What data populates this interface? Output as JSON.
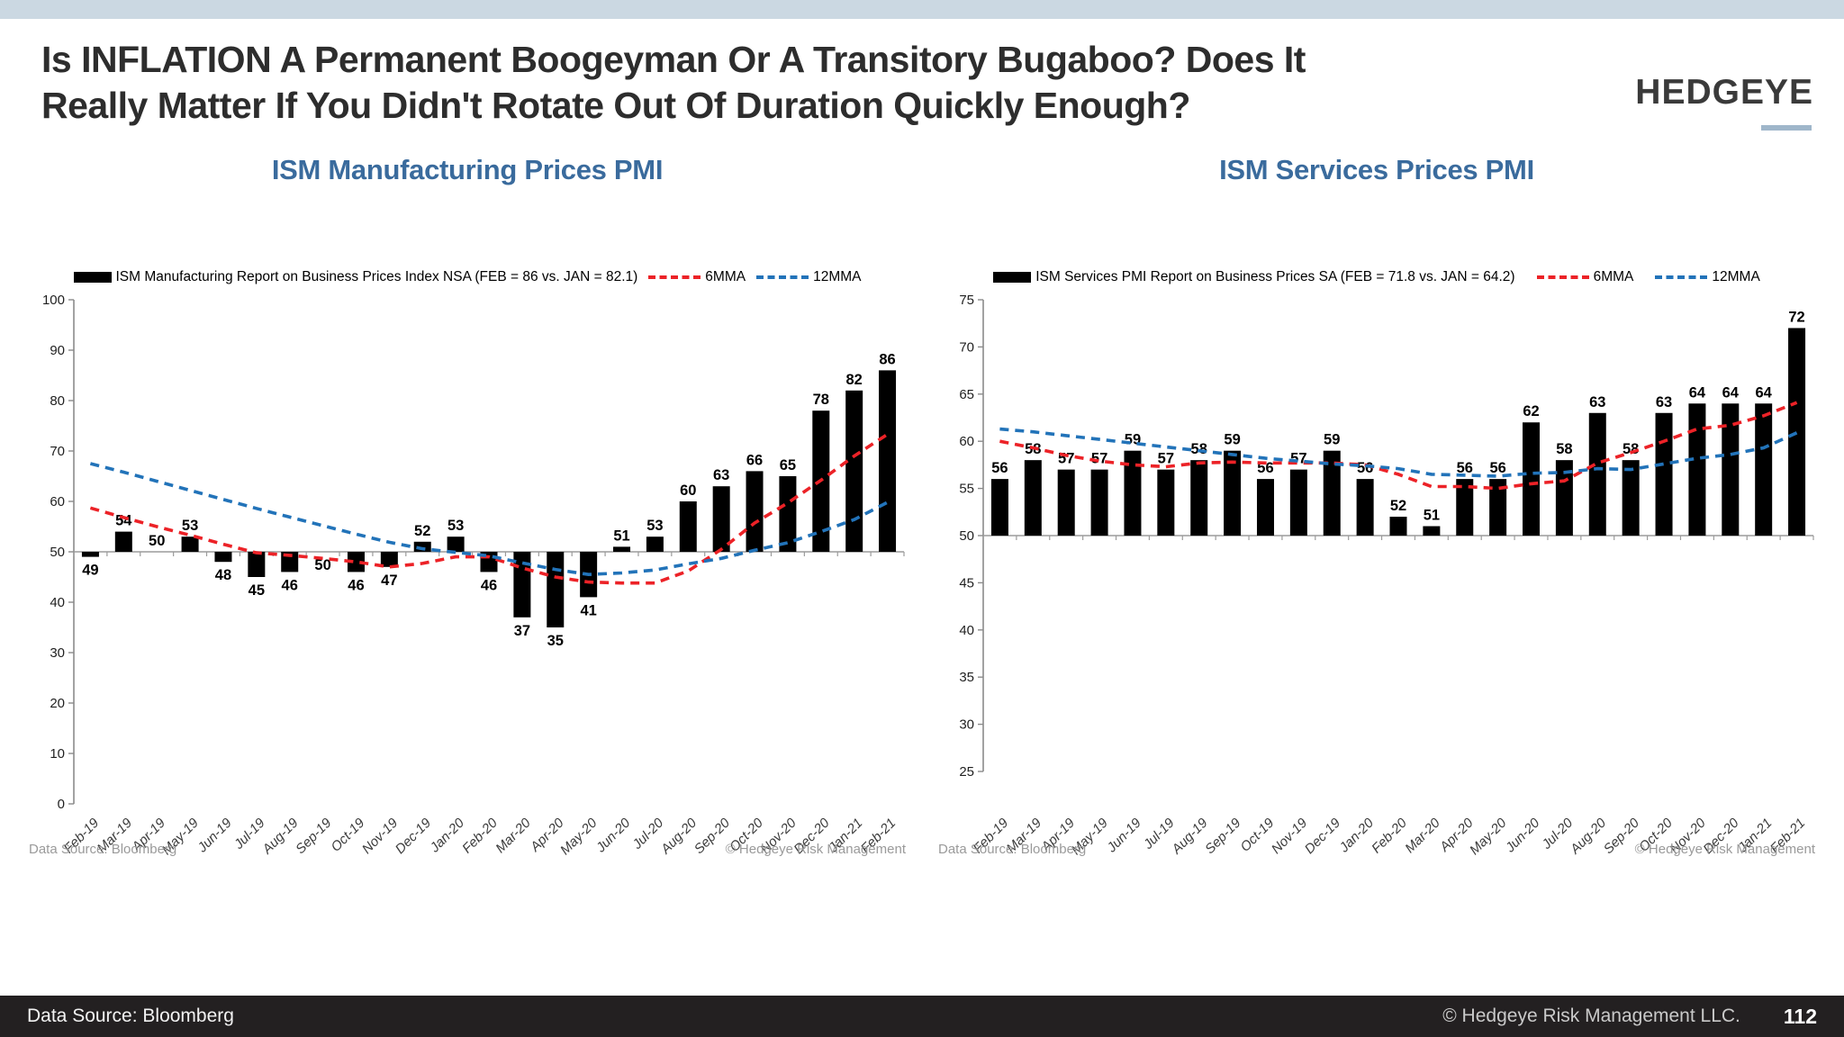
{
  "slide": {
    "title_line1": "Is INFLATION A Permanent Boogeyman Or A Transitory Bugaboo? Does It",
    "title_line2": "Really Matter If You Didn't Rotate Out Of Duration Quickly Enough?",
    "logo_text": "HEDGEYE",
    "footer": {
      "left": "Data Source: Bloomberg",
      "right": "© Hedgeye Risk Management LLC.",
      "page": "112"
    }
  },
  "theme": {
    "accent_blue": "#3a6b9d",
    "strip": "#cbd8e2",
    "footer_bg": "#232021",
    "bar": "#000000",
    "line_6mma": "#ec2227",
    "line_12mma": "#2273b9",
    "axis": "#8a8a8a",
    "note_gray": "#9a9a9a"
  },
  "chart_data": [
    {
      "type": "bar",
      "title": "ISM Manufacturing Prices PMI",
      "legend": {
        "bar_label": "ISM Manufacturing Report on Business Prices Index NSA (FEB = 86 vs. JAN = 82.1)",
        "series1": "6MMA",
        "series2": "12MMA"
      },
      "categories": [
        "Feb-19",
        "Mar-19",
        "Apr-19",
        "May-19",
        "Jun-19",
        "Jul-19",
        "Aug-19",
        "Sep-19",
        "Oct-19",
        "Nov-19",
        "Dec-19",
        "Jan-20",
        "Feb-20",
        "Mar-20",
        "Apr-20",
        "May-20",
        "Jun-20",
        "Jul-20",
        "Aug-20",
        "Sep-20",
        "Oct-20",
        "Nov-20",
        "Dec-20",
        "Jan-21",
        "Feb-21"
      ],
      "values": [
        49,
        54,
        50,
        53,
        48,
        45,
        46,
        50,
        46,
        47,
        52,
        53,
        46,
        37,
        35,
        41,
        51,
        53,
        60,
        63,
        66,
        65,
        78,
        82,
        86
      ],
      "baseline": 50,
      "ylim": [
        0,
        100
      ],
      "ytick_step": 10,
      "label_below_extra": [
        7
      ],
      "series": [
        {
          "name": "6MMA",
          "color": "#ec2227",
          "values": [
            58.7,
            56.8,
            55.0,
            53.3,
            51.5,
            49.8,
            49.3,
            48.7,
            48.0,
            47.0,
            47.7,
            49.0,
            49.0,
            46.8,
            45.0,
            44.0,
            43.8,
            43.8,
            46.2,
            50.5,
            55.7,
            59.7,
            64.2,
            69.0,
            73.3
          ]
        },
        {
          "name": "12MMA",
          "color": "#2273b9",
          "values": [
            67.5,
            65.8,
            64.0,
            62.2,
            60.4,
            58.6,
            56.9,
            55.2,
            53.5,
            51.9,
            50.6,
            49.9,
            49.2,
            47.8,
            46.5,
            45.5,
            45.8,
            46.4,
            47.6,
            48.7,
            50.3,
            51.8,
            54.0,
            56.4,
            59.8
          ]
        }
      ],
      "source_note": "Data Source: Bloomberg",
      "copyright_note": "© Hedgeye Risk Management"
    },
    {
      "type": "bar",
      "title": "ISM Services Prices PMI",
      "legend": {
        "bar_label": "ISM Services PMI Report on Business Prices SA (FEB = 71.8 vs. JAN = 64.2)",
        "series1": "6MMA",
        "series2": "12MMA"
      },
      "categories": [
        "Feb-19",
        "Mar-19",
        "Apr-19",
        "May-19",
        "Jun-19",
        "Jul-19",
        "Aug-19",
        "Sep-19",
        "Oct-19",
        "Nov-19",
        "Dec-19",
        "Jan-20",
        "Feb-20",
        "Mar-20",
        "Apr-20",
        "May-20",
        "Jun-20",
        "Jul-20",
        "Aug-20",
        "Sep-20",
        "Oct-20",
        "Nov-20",
        "Dec-20",
        "Jan-21",
        "Feb-21"
      ],
      "values": [
        56,
        58,
        57,
        57,
        59,
        57,
        58,
        59,
        56,
        57,
        59,
        56,
        52,
        51,
        56,
        56,
        62,
        58,
        63,
        58,
        63,
        64,
        64,
        64,
        72
      ],
      "baseline": 50,
      "ylim": [
        25,
        75
      ],
      "ytick_step": 5,
      "label_below_extra": [],
      "series": [
        {
          "name": "6MMA",
          "color": "#ec2227",
          "values": [
            60.0,
            59.3,
            58.5,
            57.9,
            57.5,
            57.3,
            57.7,
            57.8,
            57.7,
            57.7,
            57.7,
            57.5,
            56.5,
            55.2,
            55.2,
            55.0,
            55.5,
            55.8,
            57.7,
            58.8,
            60.0,
            61.3,
            61.7,
            62.7,
            64.1
          ]
        },
        {
          "name": "12MMA",
          "color": "#2273b9",
          "values": [
            61.3,
            61.0,
            60.6,
            60.2,
            59.8,
            59.4,
            59.0,
            58.6,
            58.2,
            57.9,
            57.6,
            57.4,
            57.1,
            56.5,
            56.4,
            56.3,
            56.6,
            56.7,
            57.1,
            57.0,
            57.6,
            58.2,
            58.6,
            59.3,
            60.9
          ]
        }
      ],
      "source_note": "Data Source: Bloomberg",
      "copyright_note": "© Hedgeye Risk Management"
    }
  ]
}
